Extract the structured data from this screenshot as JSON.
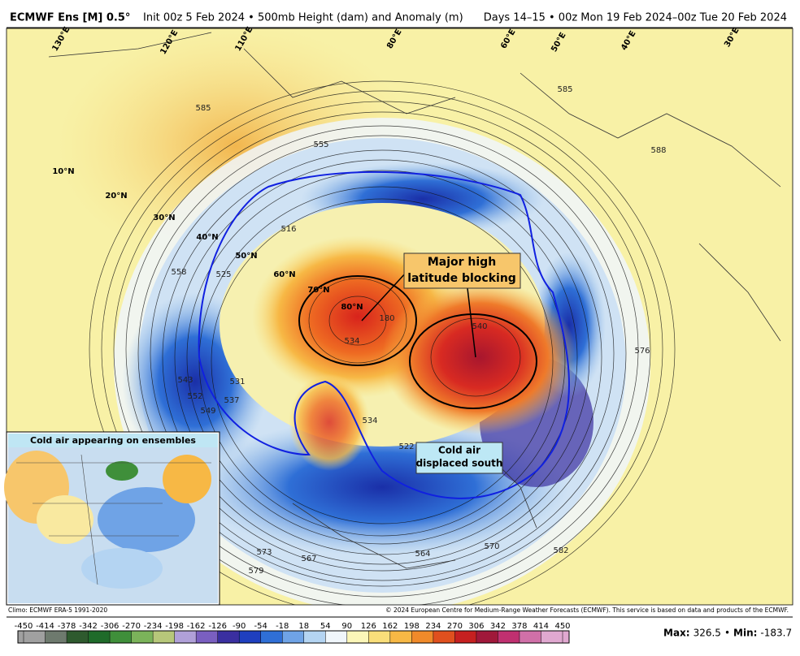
{
  "header": {
    "title": "ECMWF Ens [M] 0.5°",
    "init": "Init 00z 5 Feb 2024 • 500mb Height (dam) and Anomaly (m)",
    "valid": "Days 14–15 • 00z Mon 19 Feb 2024–00z Tue 20 Feb 2024"
  },
  "map": {
    "latitude_labels": [
      "10°N",
      "20°N",
      "30°N",
      "40°N",
      "50°N",
      "60°N",
      "70°N",
      "80°N"
    ],
    "longitude_labels": [
      "130°E",
      "120°E",
      "110°E",
      "80°E",
      "60°E",
      "50°E",
      "40°E",
      "30°E"
    ],
    "contour_labels": [
      585,
      555,
      516,
      558,
      525,
      585,
      588,
      576,
      543,
      552,
      549,
      537,
      531,
      534,
      180,
      534,
      522,
      540,
      573,
      567,
      579,
      564,
      570,
      582
    ],
    "annotations": [
      {
        "lines": [
          "Major high",
          "latitude blocking"
        ]
      },
      {
        "lines": [
          "Cold air",
          "displaced south"
        ]
      }
    ]
  },
  "inset": {
    "title": "Cold air appearing on ensembles"
  },
  "footer": {
    "climo": "Climo: ECMWF ERA-5 1991-2020",
    "copyright": "© 2024 European Centre for Medium-Range Weather Forecasts (ECMWF). This service is based on data and products of the ECMWF."
  },
  "colorbar": {
    "ticks": [
      -450,
      -414,
      -378,
      -342,
      -306,
      -270,
      -234,
      -198,
      -162,
      -126,
      -90,
      -54,
      -18,
      18,
      54,
      90,
      126,
      162,
      198,
      234,
      270,
      306,
      342,
      378,
      414,
      450
    ],
    "colors": [
      "#a0a0a0",
      "#6e7a6e",
      "#2e5a2e",
      "#1f6b2a",
      "#3f8f3a",
      "#7bb35a",
      "#b7c77a",
      "#b0a0d8",
      "#7a5fc0",
      "#3a2fa0",
      "#1f3fbf",
      "#2f6fd6",
      "#6fa3e6",
      "#b4d4f2",
      "#f0f6fb",
      "#fbf6b8",
      "#f9de7a",
      "#f7b845",
      "#f08a2a",
      "#e0501e",
      "#c62020",
      "#a0183a",
      "#c03070",
      "#d070a8",
      "#e0a8d0"
    ]
  },
  "stats": {
    "max_label": "Max:",
    "max": 326.5,
    "separator": "•",
    "min_label": "Min:",
    "min": -183.7
  }
}
